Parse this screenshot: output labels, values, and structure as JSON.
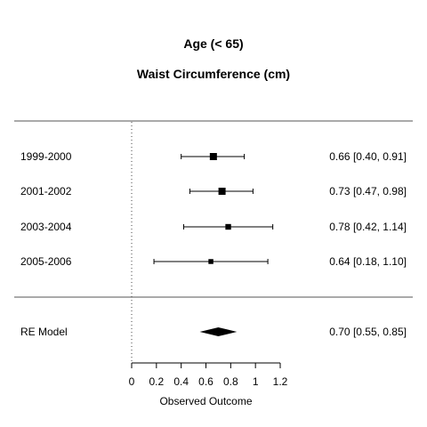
{
  "chart_data": {
    "type": "forest",
    "title": "Age (< 65)",
    "subtitle": "Waist Circumference (cm)",
    "xlabel": "Observed Outcome",
    "xlim": [
      0,
      1.2
    ],
    "xticks": [
      "0",
      "0.2",
      "0.4",
      "0.6",
      "0.8",
      "1",
      "1.2"
    ],
    "reference_line": 0,
    "studies": [
      {
        "label": "1999-2000",
        "estimate": 0.66,
        "lower": 0.4,
        "upper": 0.91,
        "ci_text": "0.66 [0.40, 0.91]",
        "weight": 1.0
      },
      {
        "label": "2001-2002",
        "estimate": 0.73,
        "lower": 0.47,
        "upper": 0.98,
        "ci_text": "0.73 [0.47, 0.98]",
        "weight": 1.0
      },
      {
        "label": "2003-2004",
        "estimate": 0.78,
        "lower": 0.42,
        "upper": 1.14,
        "ci_text": "0.78 [0.42, 1.14]",
        "weight": 0.45
      },
      {
        "label": "2005-2006",
        "estimate": 0.64,
        "lower": 0.18,
        "upper": 1.1,
        "ci_text": "0.64 [0.18, 1.10]",
        "weight": 0.25
      }
    ],
    "summary": {
      "label": "RE Model",
      "estimate": 0.7,
      "lower": 0.55,
      "upper": 0.85,
      "ci_text": "0.70 [0.55, 0.85]"
    }
  }
}
